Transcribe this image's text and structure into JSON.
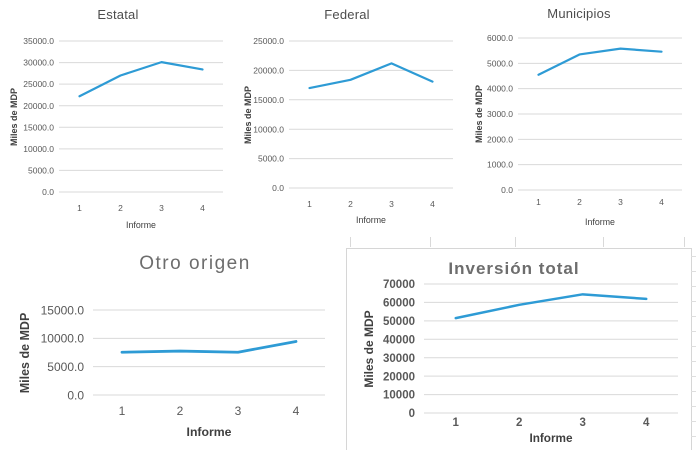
{
  "page": {
    "background": "#ffffff",
    "description": "Dashboard of five Excel-style line charts of investment by origin across four reports"
  },
  "accent_colors": {
    "line": "#2e9bd5",
    "gridline": "#d9d9d9",
    "tick_text": "#595959",
    "axis_label_text": "#404040",
    "title_text_top": "#4d4d4d",
    "title_text_bottom": "#6d6d6d",
    "frame_border": "#d6d6d6"
  },
  "chart_data": [
    {
      "type": "line",
      "title": "Estatal",
      "xlabel": "Informe",
      "ylabel": "Miles de MDP",
      "x": [
        1,
        2,
        3,
        4
      ],
      "x_tick_labels": [
        "1",
        "2",
        "3",
        "4"
      ],
      "values": [
        22200,
        27000,
        30100,
        28400
      ],
      "ylim": [
        0,
        35000
      ],
      "y_tick_labels": [
        "0.0",
        "5000.0",
        "10000.0",
        "15000.0",
        "20000.0",
        "25000.0",
        "30000.0",
        "35000.0"
      ],
      "grid": true,
      "legend": "none",
      "line_color": "#2e9bd5"
    },
    {
      "type": "line",
      "title": "Federal",
      "xlabel": "Informe",
      "ylabel": "Miles de MDP",
      "x": [
        1,
        2,
        3,
        4
      ],
      "x_tick_labels": [
        "1",
        "2",
        "3",
        "4"
      ],
      "values": [
        17000,
        18400,
        21200,
        18100
      ],
      "ylim": [
        0,
        25000
      ],
      "y_tick_labels": [
        "0.0",
        "5000.0",
        "10000.0",
        "15000.0",
        "20000.0",
        "25000.0"
      ],
      "grid": true,
      "legend": "none",
      "line_color": "#2e9bd5"
    },
    {
      "type": "line",
      "title": "Municipios",
      "xlabel": "Informe",
      "ylabel": "Miles de MDP",
      "x": [
        1,
        2,
        3,
        4
      ],
      "x_tick_labels": [
        "1",
        "2",
        "3",
        "4"
      ],
      "values": [
        4550,
        5350,
        5580,
        5460
      ],
      "ylim": [
        0,
        6000
      ],
      "y_tick_labels": [
        "0.0",
        "1000.0",
        "2000.0",
        "3000.0",
        "4000.0",
        "5000.0",
        "6000.0"
      ],
      "grid": true,
      "legend": "none",
      "line_color": "#2e9bd5"
    },
    {
      "type": "line",
      "title": "Otro origen",
      "xlabel": "Informe",
      "ylabel": "Miles de MDP",
      "x": [
        1,
        2,
        3,
        4
      ],
      "x_tick_labels": [
        "1",
        "2",
        "3",
        "4"
      ],
      "values": [
        7550,
        7750,
        7550,
        9450
      ],
      "ylim": [
        0,
        15000
      ],
      "y_tick_labels": [
        "0.0",
        "5000.0",
        "10000.0",
        "15000.0"
      ],
      "grid": true,
      "legend": "none",
      "line_color": "#2e9bd5"
    },
    {
      "type": "line",
      "title": "Inversión total",
      "xlabel": "Informe",
      "ylabel": "Miles de MDP",
      "x": [
        1,
        2,
        3,
        4
      ],
      "x_tick_labels": [
        "1",
        "2",
        "3",
        "4"
      ],
      "values": [
        51500,
        58700,
        64400,
        61900
      ],
      "ylim": [
        0,
        70000
      ],
      "y_tick_labels": [
        "0",
        "10000",
        "20000",
        "30000",
        "40000",
        "50000",
        "60000",
        "70000"
      ],
      "grid": true,
      "legend": "none",
      "line_color": "#2e9bd5"
    }
  ]
}
